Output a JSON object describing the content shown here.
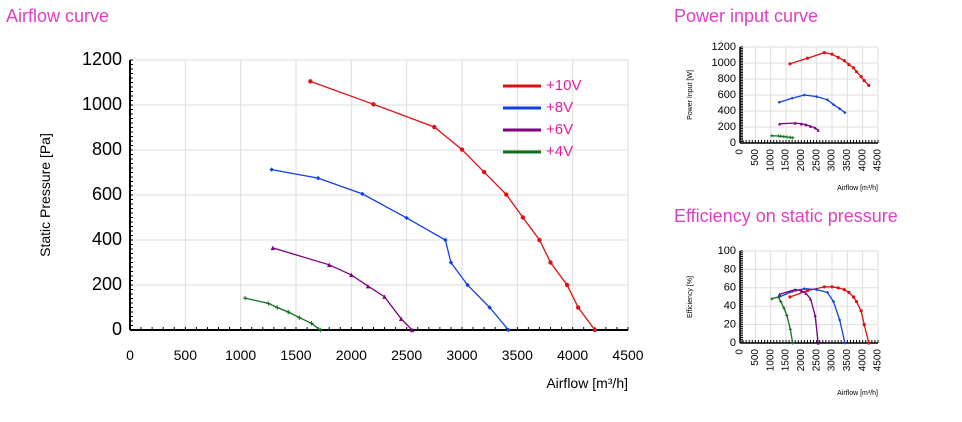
{
  "titles": {
    "airflow": "Airflow curve",
    "power": "Power input curve",
    "efficiency": "Efficiency on static pressure"
  },
  "colors": {
    "title": "#e040c0",
    "legend_text": "#e020a0",
    "+10V": "#e01010",
    "+8V": "#1040e0",
    "+6V": "#800080",
    "+4V": "#107020"
  },
  "chart_data": [
    {
      "id": "airflow",
      "type": "line",
      "xlabel": "Airflow [m³/h]",
      "ylabel": "Static Pressure [Pa]",
      "xlim": [
        0,
        4500
      ],
      "ylim": [
        0,
        1200
      ],
      "xticks": [
        0,
        500,
        1000,
        1500,
        2000,
        2500,
        3000,
        3500,
        4000,
        4500
      ],
      "yticks": [
        0,
        200,
        400,
        600,
        800,
        1000,
        1200
      ],
      "grid": true,
      "legend_position": "top-right",
      "series": [
        {
          "name": "+10V",
          "x": [
            1630,
            2200,
            2750,
            3000,
            3200,
            3400,
            3550,
            3700,
            3800,
            3950,
            4050,
            4200
          ],
          "y": [
            1105,
            1003,
            902,
            802,
            702,
            602,
            500,
            400,
            300,
            200,
            100,
            0
          ]
        },
        {
          "name": "+8V",
          "x": [
            1280,
            1700,
            2100,
            2500,
            2850,
            2900,
            3050,
            3250,
            3420
          ],
          "y": [
            713,
            675,
            605,
            498,
            400,
            300,
            200,
            100,
            0
          ]
        },
        {
          "name": "+6V",
          "x": [
            1290,
            1800,
            2000,
            2150,
            2300,
            2450,
            2550
          ],
          "y": [
            365,
            290,
            245,
            195,
            148,
            50,
            0
          ]
        },
        {
          "name": "+4V",
          "x": [
            1040,
            1250,
            1330,
            1430,
            1530,
            1640,
            1720
          ],
          "y": [
            142,
            118,
            100,
            80,
            55,
            30,
            0
          ]
        }
      ]
    },
    {
      "id": "power",
      "type": "line",
      "xlabel": "Airflow  [m³/h]",
      "ylabel": "Power Input [W]",
      "xlim": [
        0,
        4500
      ],
      "ylim": [
        0,
        1200
      ],
      "xticks": [
        0,
        500,
        1000,
        1500,
        2000,
        2500,
        3000,
        3500,
        4000,
        4500
      ],
      "yticks": [
        0,
        200,
        400,
        600,
        800,
        1000,
        1200
      ],
      "grid": true,
      "series": [
        {
          "name": "+10V",
          "x": [
            1630,
            2200,
            2750,
            3000,
            3200,
            3400,
            3550,
            3700,
            3800,
            3950,
            4050,
            4200
          ],
          "y": [
            990,
            1060,
            1130,
            1110,
            1070,
            1030,
            980,
            940,
            890,
            830,
            780,
            720
          ]
        },
        {
          "name": "+8V",
          "x": [
            1280,
            1700,
            2100,
            2500,
            2850,
            3050,
            3250,
            3420
          ],
          "y": [
            510,
            560,
            600,
            580,
            540,
            480,
            430,
            380
          ]
        },
        {
          "name": "+6V",
          "x": [
            1290,
            1800,
            2000,
            2150,
            2300,
            2450,
            2550
          ],
          "y": [
            240,
            250,
            240,
            230,
            210,
            190,
            160
          ]
        },
        {
          "name": "+4V",
          "x": [
            1040,
            1250,
            1330,
            1430,
            1530,
            1640,
            1720
          ],
          "y": [
            90,
            88,
            84,
            80,
            75,
            70,
            65
          ]
        }
      ]
    },
    {
      "id": "efficiency",
      "type": "line",
      "xlabel": "Airflow  [m³/h]",
      "ylabel": "Efficiency [%]",
      "xlim": [
        0,
        4500
      ],
      "ylim": [
        0,
        100
      ],
      "xticks": [
        0,
        500,
        1000,
        1500,
        2000,
        2500,
        3000,
        3500,
        4000,
        4500
      ],
      "yticks": [
        0,
        20,
        40,
        60,
        80,
        100
      ],
      "grid": true,
      "series": [
        {
          "name": "+10V",
          "x": [
            1630,
            2200,
            2750,
            3000,
            3200,
            3400,
            3550,
            3700,
            3800,
            3950,
            4050,
            4200
          ],
          "y": [
            50,
            57,
            61,
            61,
            60,
            58,
            55,
            50,
            45,
            35,
            20,
            0
          ]
        },
        {
          "name": "+8V",
          "x": [
            1280,
            1700,
            2100,
            2500,
            2850,
            3050,
            3250,
            3420
          ],
          "y": [
            50,
            56,
            59,
            58,
            55,
            45,
            25,
            0
          ]
        },
        {
          "name": "+6V",
          "x": [
            1290,
            1800,
            2000,
            2150,
            2300,
            2450,
            2550
          ],
          "y": [
            53,
            58,
            57,
            54,
            48,
            30,
            0
          ]
        },
        {
          "name": "+4V",
          "x": [
            1040,
            1250,
            1330,
            1430,
            1530,
            1640,
            1720
          ],
          "y": [
            48,
            50,
            45,
            38,
            30,
            15,
            0
          ]
        }
      ]
    }
  ]
}
